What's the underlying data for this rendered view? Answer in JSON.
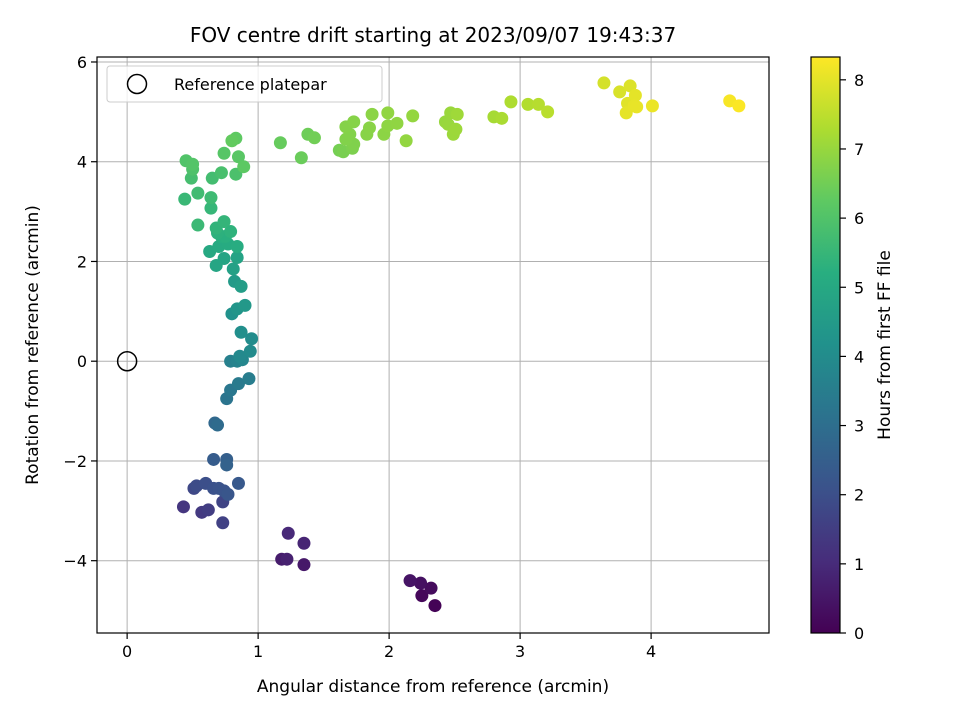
{
  "chart_data": {
    "type": "scatter",
    "title": "FOV centre drift starting at 2023/09/07 19:43:37",
    "xlabel": "Angular distance from reference (arcmin)",
    "ylabel": "Rotation from reference (arcmin)",
    "xlim": [
      -0.23,
      4.9
    ],
    "ylim": [
      -5.45,
      6.1
    ],
    "x_ticks": [
      0,
      1,
      2,
      3,
      4
    ],
    "y_ticks": [
      -4,
      -2,
      0,
      2,
      4,
      6
    ],
    "x_tick_labels": [
      "0",
      "1",
      "2",
      "3",
      "4"
    ],
    "y_tick_labels": [
      "−4",
      "−2",
      "0",
      "2",
      "4",
      "6"
    ],
    "grid": true,
    "legend": {
      "placement": "top-left",
      "entries": [
        "Reference platepar"
      ]
    },
    "reference_point": {
      "x": 0,
      "y": 0,
      "marker": "open-circle"
    },
    "colorbar": {
      "label": "Hours from first FF file",
      "range": [
        0,
        8.33
      ],
      "ticks": [
        0,
        1,
        2,
        3,
        4,
        5,
        6,
        7,
        8
      ],
      "tick_labels": [
        "0",
        "1",
        "2",
        "3",
        "4",
        "5",
        "6",
        "7",
        "8"
      ],
      "colormap": "viridis"
    },
    "points": [
      [
        2.35,
        -4.9,
        0.05
      ],
      [
        2.25,
        -4.7,
        0.15
      ],
      [
        2.32,
        -4.55,
        0.25
      ],
      [
        2.24,
        -4.45,
        0.35
      ],
      [
        2.16,
        -4.4,
        0.45
      ],
      [
        1.35,
        -4.08,
        0.55
      ],
      [
        1.18,
        -3.97,
        0.65
      ],
      [
        1.22,
        -3.97,
        0.75
      ],
      [
        1.35,
        -3.65,
        0.85
      ],
      [
        1.23,
        -3.45,
        0.95
      ],
      [
        0.43,
        -2.92,
        1.3
      ],
      [
        0.57,
        -3.03,
        1.4
      ],
      [
        0.62,
        -2.98,
        1.5
      ],
      [
        0.73,
        -3.24,
        1.6
      ],
      [
        0.73,
        -2.82,
        1.7
      ],
      [
        0.51,
        -2.55,
        1.8
      ],
      [
        0.53,
        -2.5,
        1.9
      ],
      [
        0.6,
        -2.45,
        2.0
      ],
      [
        0.66,
        -2.55,
        2.05
      ],
      [
        0.7,
        -2.55,
        2.1
      ],
      [
        0.74,
        -2.6,
        2.15
      ],
      [
        0.77,
        -2.67,
        2.2
      ],
      [
        0.85,
        -2.45,
        2.3
      ],
      [
        0.66,
        -1.97,
        2.4
      ],
      [
        0.76,
        -1.97,
        2.5
      ],
      [
        0.76,
        -2.08,
        2.6
      ],
      [
        0.67,
        -1.24,
        2.8
      ],
      [
        0.69,
        -1.28,
        2.9
      ],
      [
        0.76,
        -0.75,
        3.2
      ],
      [
        0.79,
        -0.58,
        3.3
      ],
      [
        0.85,
        -0.45,
        3.4
      ],
      [
        0.93,
        -0.35,
        3.5
      ],
      [
        0.79,
        0.0,
        3.6
      ],
      [
        0.84,
        0.0,
        3.7
      ],
      [
        0.88,
        0.03,
        3.8
      ],
      [
        0.86,
        0.1,
        3.9
      ],
      [
        0.94,
        0.2,
        3.95
      ],
      [
        0.95,
        0.45,
        4.0
      ],
      [
        0.87,
        0.58,
        4.1
      ],
      [
        0.8,
        0.95,
        4.2
      ],
      [
        0.84,
        1.05,
        4.3
      ],
      [
        0.9,
        1.12,
        4.4
      ],
      [
        0.82,
        1.6,
        4.5
      ],
      [
        0.87,
        1.5,
        4.6
      ],
      [
        0.81,
        1.85,
        4.7
      ],
      [
        0.84,
        2.08,
        4.8
      ],
      [
        0.74,
        2.06,
        4.85
      ],
      [
        0.68,
        1.92,
        4.9
      ],
      [
        0.63,
        2.2,
        5.0
      ],
      [
        0.7,
        2.3,
        5.05
      ],
      [
        0.77,
        2.35,
        5.1
      ],
      [
        0.84,
        2.3,
        5.15
      ],
      [
        0.72,
        2.5,
        5.2
      ],
      [
        0.75,
        2.5,
        5.25
      ],
      [
        0.69,
        2.57,
        5.3
      ],
      [
        0.79,
        2.6,
        5.35
      ],
      [
        0.68,
        2.67,
        5.4
      ],
      [
        0.74,
        2.8,
        5.45
      ],
      [
        0.64,
        3.07,
        5.5
      ],
      [
        0.44,
        3.25,
        5.55
      ],
      [
        0.54,
        2.73,
        5.6
      ],
      [
        0.64,
        3.28,
        5.65
      ],
      [
        0.54,
        3.37,
        5.7
      ],
      [
        0.65,
        3.67,
        5.75
      ],
      [
        0.49,
        3.67,
        5.8
      ],
      [
        0.72,
        3.78,
        5.85
      ],
      [
        0.83,
        3.75,
        5.9
      ],
      [
        0.5,
        3.85,
        5.95
      ],
      [
        0.45,
        4.02,
        6.0
      ],
      [
        0.5,
        3.95,
        6.05
      ],
      [
        0.74,
        4.17,
        6.1
      ],
      [
        0.85,
        4.1,
        6.15
      ],
      [
        0.89,
        3.9,
        6.2
      ],
      [
        0.83,
        4.47,
        6.25
      ],
      [
        0.8,
        4.42,
        6.3
      ],
      [
        1.17,
        4.38,
        6.35
      ],
      [
        1.33,
        4.08,
        6.4
      ],
      [
        1.38,
        4.55,
        6.45
      ],
      [
        1.43,
        4.48,
        6.5
      ],
      [
        1.62,
        4.23,
        6.55
      ],
      [
        1.65,
        4.2,
        6.6
      ],
      [
        1.72,
        4.27,
        6.65
      ],
      [
        1.73,
        4.35,
        6.7
      ],
      [
        1.67,
        4.45,
        6.72
      ],
      [
        1.7,
        4.55,
        6.74
      ],
      [
        1.67,
        4.7,
        6.76
      ],
      [
        1.73,
        4.8,
        6.78
      ],
      [
        1.83,
        4.55,
        6.8
      ],
      [
        1.85,
        4.68,
        6.82
      ],
      [
        1.87,
        4.95,
        6.84
      ],
      [
        1.96,
        4.55,
        6.86
      ],
      [
        1.99,
        4.72,
        6.88
      ],
      [
        2.06,
        4.77,
        6.9
      ],
      [
        1.99,
        4.98,
        6.92
      ],
      [
        2.13,
        4.42,
        6.94
      ],
      [
        2.18,
        4.92,
        6.96
      ],
      [
        2.43,
        4.8,
        7.0
      ],
      [
        2.45,
        4.75,
        7.02
      ],
      [
        2.47,
        4.98,
        7.04
      ],
      [
        2.49,
        4.55,
        7.06
      ],
      [
        2.51,
        4.65,
        7.08
      ],
      [
        2.52,
        4.95,
        7.1
      ],
      [
        2.8,
        4.9,
        7.2
      ],
      [
        2.86,
        4.87,
        7.25
      ],
      [
        2.93,
        5.2,
        7.3
      ],
      [
        3.06,
        5.15,
        7.35
      ],
      [
        3.14,
        5.15,
        7.4
      ],
      [
        3.21,
        5.0,
        7.45
      ],
      [
        3.64,
        5.58,
        7.8
      ],
      [
        3.76,
        5.4,
        7.85
      ],
      [
        3.84,
        5.52,
        7.9
      ],
      [
        3.82,
        5.17,
        7.95
      ],
      [
        3.88,
        5.33,
        8.0
      ],
      [
        3.81,
        4.98,
        8.02
      ],
      [
        3.87,
        5.12,
        8.04
      ],
      [
        3.89,
        5.1,
        8.06
      ],
      [
        4.01,
        5.12,
        8.1
      ],
      [
        4.6,
        5.22,
        8.25
      ],
      [
        4.67,
        5.12,
        8.3
      ]
    ]
  }
}
